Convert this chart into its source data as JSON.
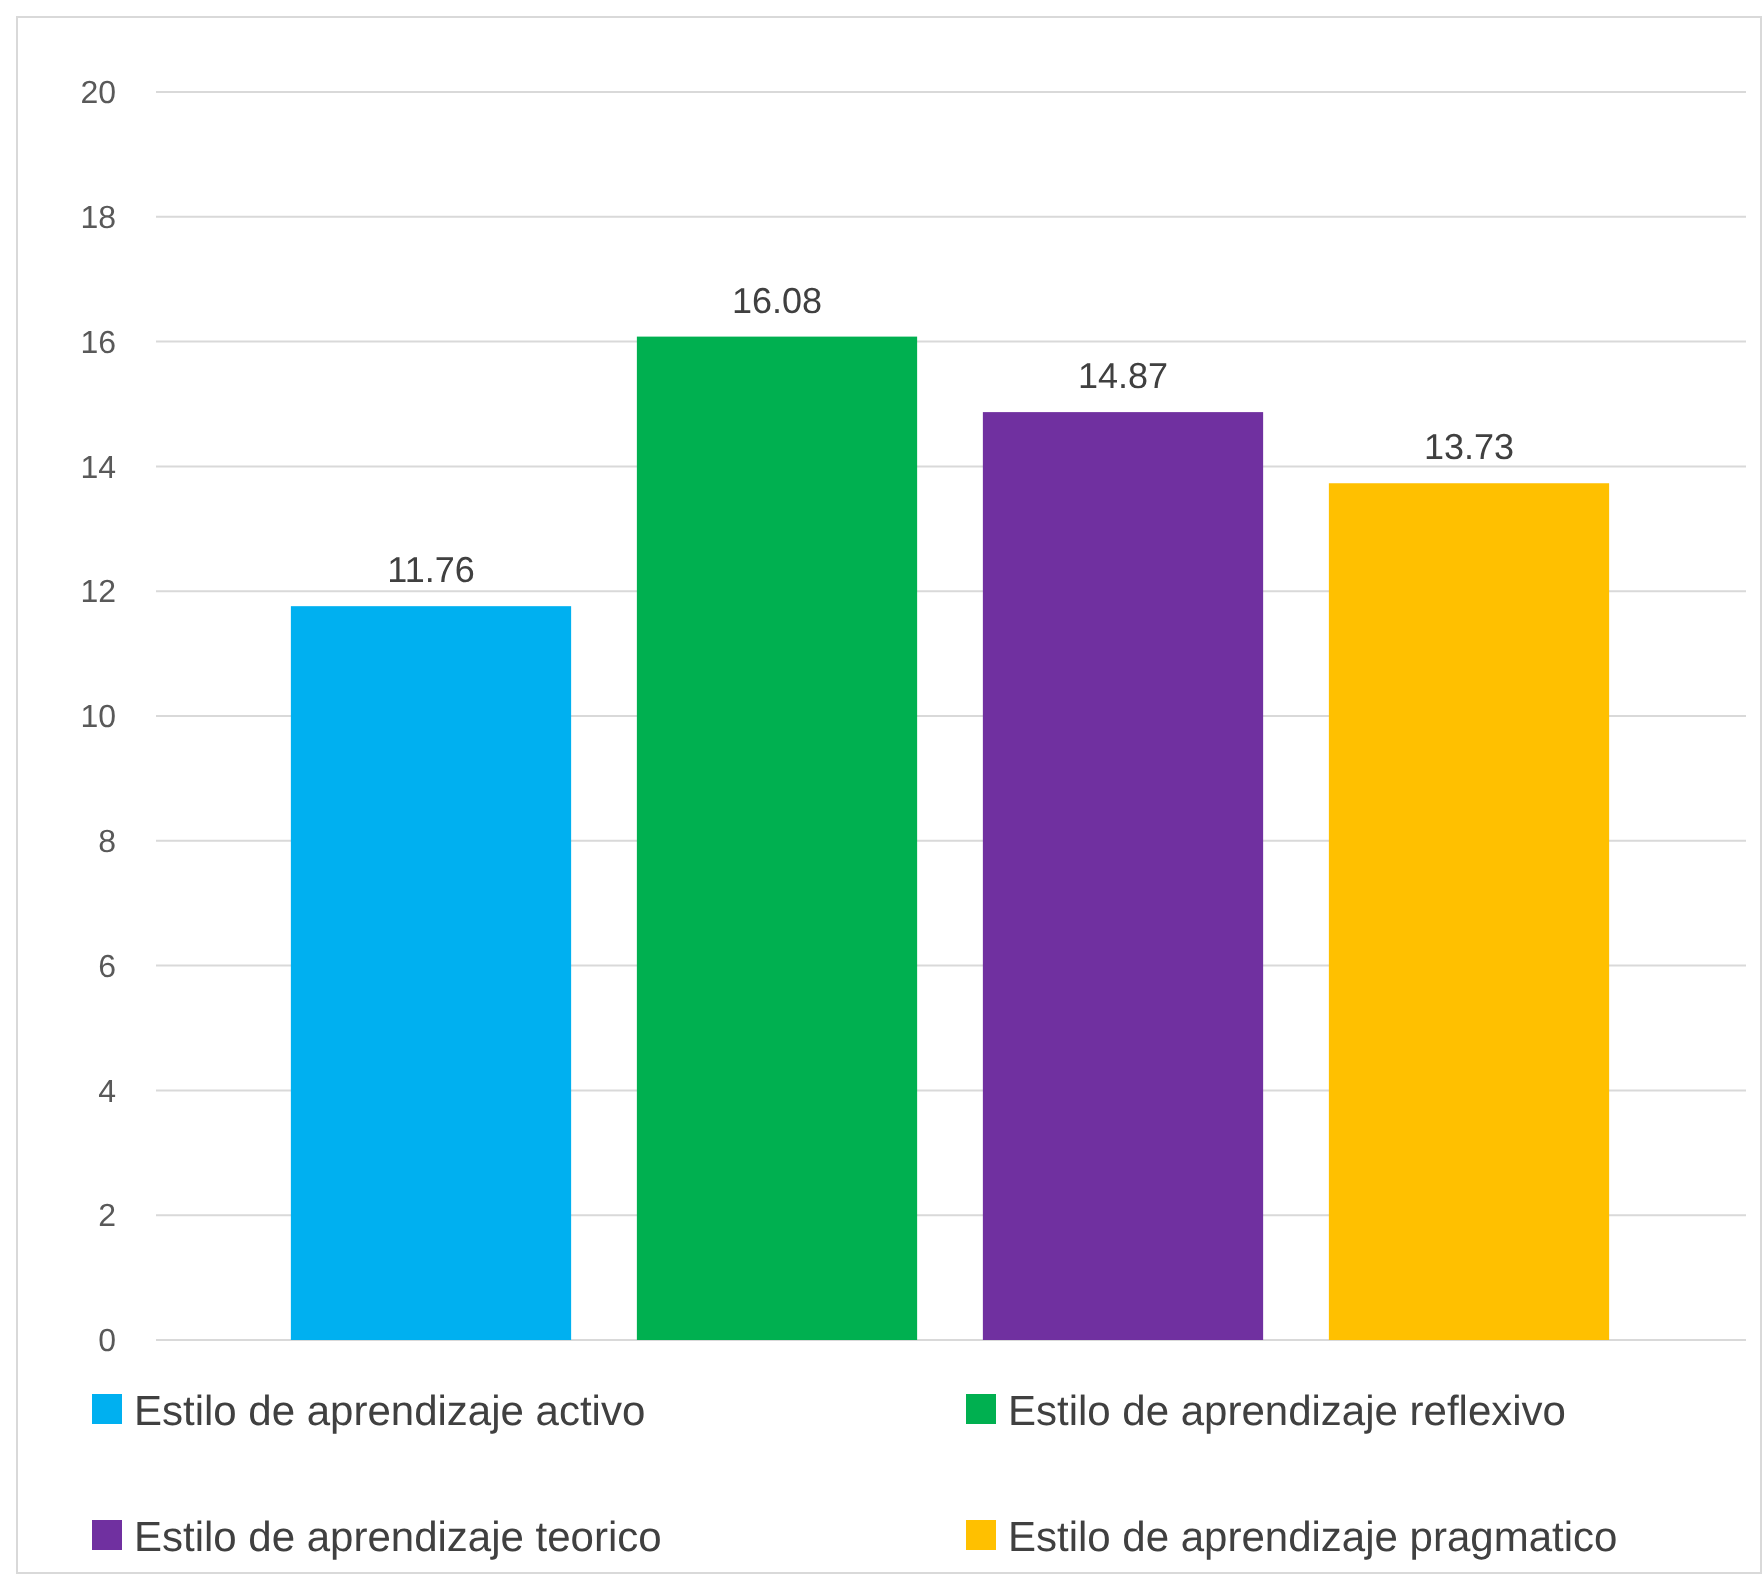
{
  "chart_data": {
    "type": "bar",
    "categories": [
      null,
      null,
      null,
      null
    ],
    "series": [
      {
        "name": "Estilo de aprendizaje activo",
        "color": "#00b0f0",
        "values": [
          11.76,
          null,
          null,
          null
        ]
      },
      {
        "name": "Estilo de aprendizaje reflexivo",
        "color": "#00b050",
        "values": [
          null,
          16.08,
          null,
          null
        ]
      },
      {
        "name": "Estilo de aprendizaje teorico",
        "color": "#7030a0",
        "values": [
          null,
          null,
          14.87,
          null
        ]
      },
      {
        "name": "Estilo de aprendizaje pragmatico",
        "color": "#ffc000",
        "values": [
          null,
          null,
          null,
          13.73
        ]
      }
    ],
    "ylim": [
      0,
      20
    ],
    "yticks": [
      0,
      2,
      4,
      6,
      8,
      10,
      12,
      14,
      16,
      18,
      20
    ],
    "grid": "y",
    "data_labels": true,
    "legend": "bottom"
  }
}
